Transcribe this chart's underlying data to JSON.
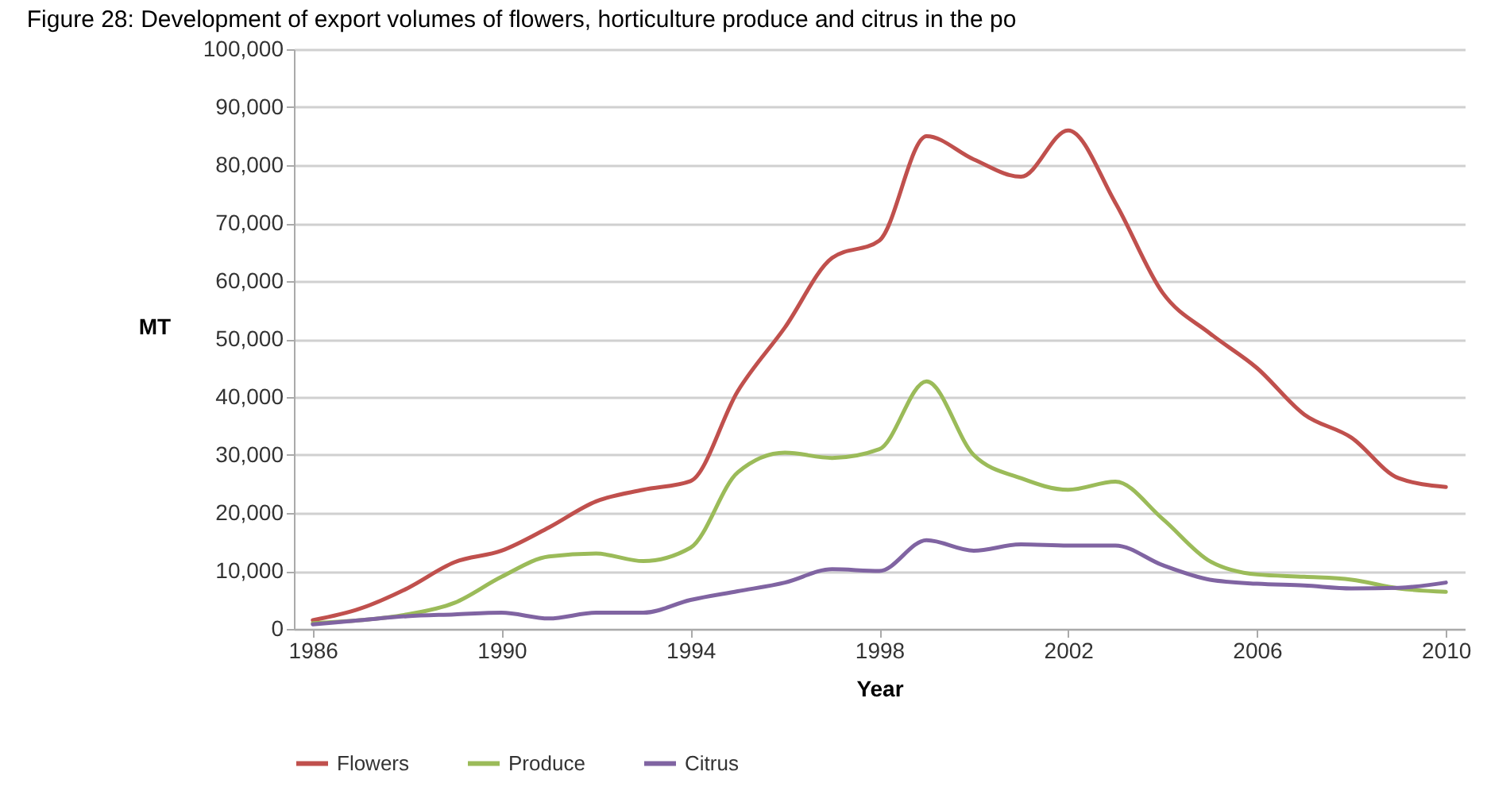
{
  "chart_data": {
    "type": "line",
    "title": "Figure 28: Development of export volumes of flowers, horticulture produce and citrus in the po",
    "xlabel": "Year",
    "ylabel": "MT",
    "x": [
      1986,
      1987,
      1988,
      1989,
      1990,
      1991,
      1992,
      1993,
      1994,
      1995,
      1996,
      1997,
      1998,
      1999,
      2000,
      2001,
      2002,
      2003,
      2004,
      2005,
      2006,
      2007,
      2008,
      2009,
      2010
    ],
    "series": [
      {
        "name": "Flowers",
        "color": "#c0504d",
        "values": [
          1500,
          3500,
          7000,
          11500,
          13500,
          17500,
          22000,
          24000,
          25500,
          41000,
          52000,
          64000,
          67000,
          85000,
          81000,
          78000,
          86000,
          73500,
          58000,
          51000,
          45000,
          37000,
          33000,
          26000,
          24500
        ]
      },
      {
        "name": "Produce",
        "color": "#9bbb59",
        "values": [
          1000,
          1500,
          2500,
          4500,
          9000,
          12500,
          13000,
          11700,
          14000,
          27000,
          30400,
          29500,
          31000,
          42700,
          30000,
          26000,
          24000,
          25400,
          19000,
          11700,
          9400,
          9000,
          8500,
          7000,
          6400
        ]
      },
      {
        "name": "Citrus",
        "color": "#8064a2",
        "values": [
          800,
          1500,
          2200,
          2500,
          2800,
          1800,
          2800,
          2800,
          5000,
          6500,
          8000,
          10300,
          10000,
          15300,
          13500,
          14600,
          14400,
          14400,
          11000,
          8500,
          7800,
          7500,
          7000,
          7100,
          8000
        ]
      }
    ],
    "xlim": [
      1985.6,
      2010.4
    ],
    "xticks": [
      1986,
      1990,
      1994,
      1998,
      2002,
      2006,
      2010
    ],
    "ylim": [
      0,
      100000
    ],
    "yticks": [
      0,
      {
        "value": 10000,
        "label": "10,000"
      },
      {
        "value": 20000,
        "label": "20,000"
      },
      {
        "value": 30000,
        "label": "30,000"
      },
      {
        "value": 40000,
        "label": "40,000"
      },
      {
        "value": 50000,
        "label": "50,000"
      },
      {
        "value": 60000,
        "label": "60,000"
      },
      {
        "value": 70000,
        "label": "70,000"
      },
      {
        "value": 80000,
        "label": "80,000"
      },
      {
        "value": 90000,
        "label": "90,000"
      },
      {
        "value": 100000,
        "label": "100,000"
      }
    ],
    "grid": "y",
    "legend": "bottom"
  }
}
